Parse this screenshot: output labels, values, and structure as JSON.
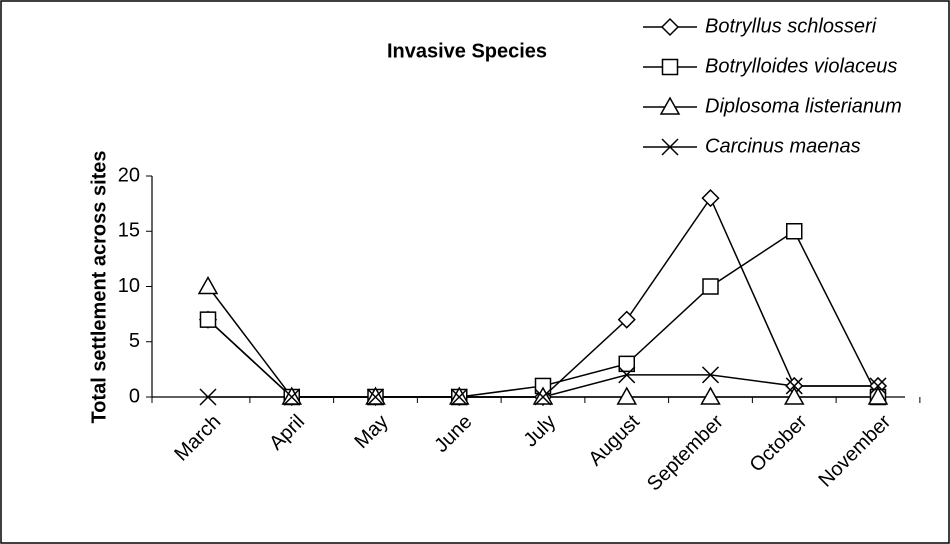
{
  "chart_data": {
    "type": "line",
    "title": "Invasive Species",
    "y_label": "Total settlement across sites",
    "categories": [
      "March",
      "April",
      "May",
      "June",
      "July",
      "August",
      "September",
      "October",
      "November"
    ],
    "series": [
      {
        "name": "Botryllus schlosseri",
        "marker": "diamond",
        "color": "#000000",
        "values": [
          7,
          0,
          0,
          0,
          0,
          7,
          18,
          1,
          1
        ]
      },
      {
        "name": "Botrylloides violaceus",
        "marker": "square",
        "color": "#000000",
        "values": [
          7,
          0,
          0,
          0,
          1,
          3,
          10,
          15,
          0
        ]
      },
      {
        "name": "Diplosoma listerianum",
        "marker": "triangle",
        "color": "#000000",
        "values": [
          10,
          0,
          0,
          0,
          0,
          0,
          0,
          0,
          0
        ]
      },
      {
        "name": "Carcinus maenas",
        "marker": "x",
        "color": "#000000",
        "values": [
          0,
          0,
          0,
          0,
          0,
          2,
          2,
          1,
          1
        ]
      }
    ],
    "ylim": [
      0,
      20
    ],
    "yticks": [
      0,
      5,
      10,
      15,
      20
    ],
    "grid": false,
    "legend": "top-right"
  }
}
